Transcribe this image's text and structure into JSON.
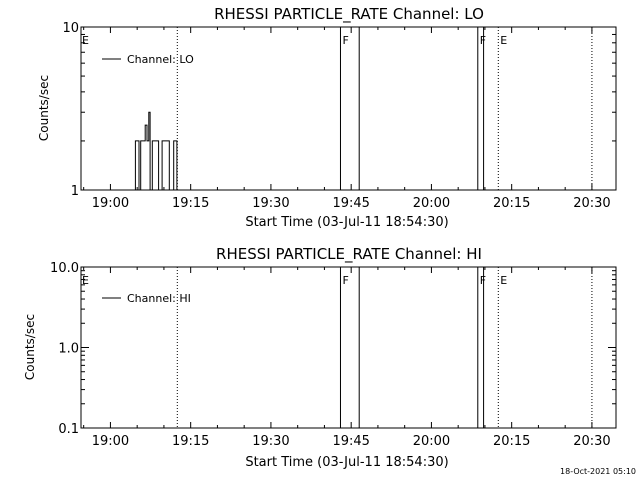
{
  "footer": {
    "timestamp": "18-Oct-2021 05:10"
  },
  "chart_data": [
    {
      "type": "line",
      "title": "RHESSI PARTICLE_RATE Channel: LO",
      "xlabel": "Start Time (03-Jul-11 18:54:30)",
      "ylabel": "Counts/sec",
      "y_scale": "log",
      "xlim": [
        "18:54:30",
        "20:34:30"
      ],
      "ylim": [
        1,
        10
      ],
      "x_ticks": [
        "19:00",
        "19:15",
        "19:30",
        "19:45",
        "20:00",
        "20:15",
        "20:30"
      ],
      "y_ticks": [
        "1",
        "10"
      ],
      "legend": {
        "position": "top-left",
        "entries": [
          "Channel: LO"
        ]
      },
      "series": [
        {
          "name": "Channel: LO",
          "points": [
            [
              "19:04:40",
              1
            ],
            [
              "19:04:40",
              2
            ],
            [
              "19:05:20",
              2
            ],
            [
              "19:05:20",
              1
            ],
            [
              "19:05:40",
              1
            ],
            [
              "19:05:40",
              2
            ],
            [
              "19:06:30",
              2
            ],
            [
              "19:06:30",
              2.5
            ],
            [
              "19:06:50",
              2.5
            ],
            [
              "19:06:50",
              2
            ],
            [
              "19:07:10",
              2
            ],
            [
              "19:07:10",
              3
            ],
            [
              "19:07:25",
              3
            ],
            [
              "19:07:25",
              1
            ],
            [
              "19:07:50",
              1
            ],
            [
              "19:07:50",
              2
            ],
            [
              "19:09:00",
              2
            ],
            [
              "19:09:00",
              1
            ],
            [
              "19:09:40",
              1
            ],
            [
              "19:09:40",
              2
            ],
            [
              "19:11:00",
              2
            ],
            [
              "19:11:00",
              1
            ],
            [
              "19:11:50",
              1
            ],
            [
              "19:11:50",
              2
            ],
            [
              "19:12:25",
              2
            ],
            [
              "19:12:25",
              1
            ]
          ]
        }
      ],
      "markers": [
        {
          "label": "E",
          "x": "18:54:30",
          "style": "none"
        },
        {
          "label": "",
          "x": "19:12:30",
          "style": "dotted"
        },
        {
          "label": "F",
          "x": "19:43:00",
          "style": "solid"
        },
        {
          "label": "",
          "x": "19:46:30",
          "style": "solid"
        },
        {
          "label": "F",
          "x": "20:08:40",
          "style": "solid"
        },
        {
          "label": "",
          "x": "20:09:45",
          "style": "solid"
        },
        {
          "label": "E",
          "x": "20:12:30",
          "style": "dotted"
        },
        {
          "label": "",
          "x": "20:30:00",
          "style": "dotted"
        }
      ]
    },
    {
      "type": "line",
      "title": "RHESSI PARTICLE_RATE Channel: HI",
      "xlabel": "Start Time (03-Jul-11 18:54:30)",
      "ylabel": "Counts/sec",
      "y_scale": "log",
      "xlim": [
        "18:54:30",
        "20:34:30"
      ],
      "ylim": [
        0.1,
        10
      ],
      "x_ticks": [
        "19:00",
        "19:15",
        "19:30",
        "19:45",
        "20:00",
        "20:15",
        "20:30"
      ],
      "y_ticks": [
        "0.1",
        "1.0",
        "10.0"
      ],
      "legend": {
        "position": "top-left",
        "entries": [
          "Channel: HI"
        ]
      },
      "series": [
        {
          "name": "Channel: HI",
          "points": []
        }
      ],
      "markers": [
        {
          "label": "E",
          "x": "18:54:30",
          "style": "none"
        },
        {
          "label": "",
          "x": "19:12:30",
          "style": "dotted"
        },
        {
          "label": "F",
          "x": "19:43:00",
          "style": "solid"
        },
        {
          "label": "",
          "x": "19:46:30",
          "style": "solid"
        },
        {
          "label": "F",
          "x": "20:08:40",
          "style": "solid"
        },
        {
          "label": "",
          "x": "20:09:45",
          "style": "solid"
        },
        {
          "label": "E",
          "x": "20:12:30",
          "style": "dotted"
        },
        {
          "label": "",
          "x": "20:30:00",
          "style": "dotted"
        }
      ]
    }
  ]
}
